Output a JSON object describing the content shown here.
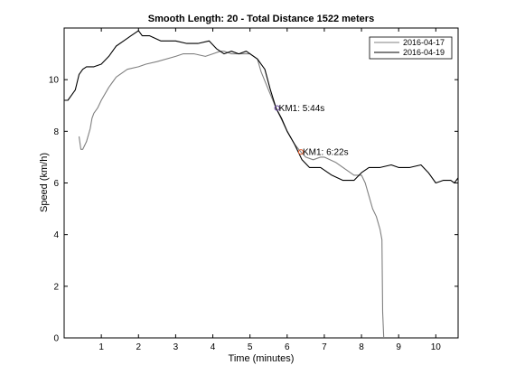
{
  "chart_data": {
    "type": "line",
    "title": "Smooth Length: 20 - Total Distance 1522 meters",
    "xlabel": "Time (minutes)",
    "ylabel": "Speed (km/h)",
    "xlim": [
      0,
      10.6
    ],
    "ylim": [
      0,
      12
    ],
    "xticks": [
      1,
      2,
      3,
      4,
      5,
      6,
      7,
      8,
      9,
      10
    ],
    "yticks": [
      0,
      2,
      4,
      6,
      8,
      10
    ],
    "grid": false,
    "legend_position": "top-right",
    "series": [
      {
        "name": "2016-04-17",
        "color": "#808080",
        "x": [
          0.4,
          0.45,
          0.5,
          0.6,
          0.7,
          0.75,
          0.8,
          0.9,
          1.0,
          1.2,
          1.3,
          1.4,
          1.5,
          1.7,
          2.0,
          2.2,
          2.5,
          3.0,
          3.2,
          3.5,
          3.8,
          4.0,
          4.2,
          4.3,
          4.5,
          4.6,
          4.8,
          5.0,
          5.2,
          5.3,
          5.5,
          5.7,
          5.8,
          6.0,
          6.2,
          6.37,
          6.5,
          6.7,
          6.9,
          7.0,
          7.3,
          7.6,
          7.8,
          8.0,
          8.1,
          8.2,
          8.3,
          8.4,
          8.5,
          8.55,
          8.57,
          8.6
        ],
        "y": [
          7.8,
          7.3,
          7.3,
          7.6,
          8.1,
          8.5,
          8.7,
          8.9,
          9.2,
          9.7,
          9.9,
          10.1,
          10.2,
          10.4,
          10.5,
          10.6,
          10.7,
          10.9,
          11.0,
          11.0,
          10.9,
          11.0,
          11.1,
          11.1,
          11.0,
          11.0,
          11.0,
          11.0,
          10.8,
          10.3,
          9.6,
          8.9,
          8.6,
          8.0,
          7.5,
          7.2,
          7.0,
          6.9,
          7.0,
          7.0,
          6.8,
          6.5,
          6.3,
          6.3,
          6.0,
          5.5,
          5.0,
          4.7,
          4.2,
          3.8,
          1.0,
          0.0
        ]
      },
      {
        "name": "2016-04-19",
        "color": "#000000",
        "x": [
          0.0,
          0.1,
          0.2,
          0.3,
          0.4,
          0.5,
          0.6,
          0.8,
          1.0,
          1.2,
          1.4,
          1.6,
          1.8,
          2.0,
          2.1,
          2.3,
          2.6,
          3.0,
          3.3,
          3.6,
          3.9,
          4.1,
          4.3,
          4.5,
          4.7,
          4.9,
          5.0,
          5.2,
          5.4,
          5.55,
          5.7,
          5.85,
          6.0,
          6.2,
          6.4,
          6.6,
          6.9,
          7.2,
          7.5,
          7.8,
          8.0,
          8.2,
          8.5,
          8.8,
          9.0,
          9.3,
          9.6,
          9.8,
          10.0,
          10.2,
          10.4,
          10.5,
          10.6
        ],
        "y": [
          9.2,
          9.2,
          9.4,
          9.6,
          10.2,
          10.4,
          10.5,
          10.5,
          10.6,
          10.9,
          11.3,
          11.5,
          11.7,
          11.9,
          11.7,
          11.7,
          11.5,
          11.5,
          11.4,
          11.4,
          11.5,
          11.2,
          11.0,
          11.1,
          11.0,
          11.1,
          11.0,
          10.8,
          10.4,
          9.6,
          8.9,
          8.5,
          8.0,
          7.5,
          6.9,
          6.6,
          6.6,
          6.3,
          6.1,
          6.1,
          6.4,
          6.6,
          6.6,
          6.7,
          6.6,
          6.6,
          6.7,
          6.4,
          6.0,
          6.1,
          6.1,
          6.0,
          6.2
        ]
      }
    ],
    "annotations": [
      {
        "text": "KM1: 5:44s",
        "x": 5.73,
        "y": 8.9,
        "marker_color": "#6a4aa0"
      },
      {
        "text": "KM1: 6:22s",
        "x": 6.37,
        "y": 7.2,
        "marker_color": "#e05a2a"
      }
    ]
  }
}
